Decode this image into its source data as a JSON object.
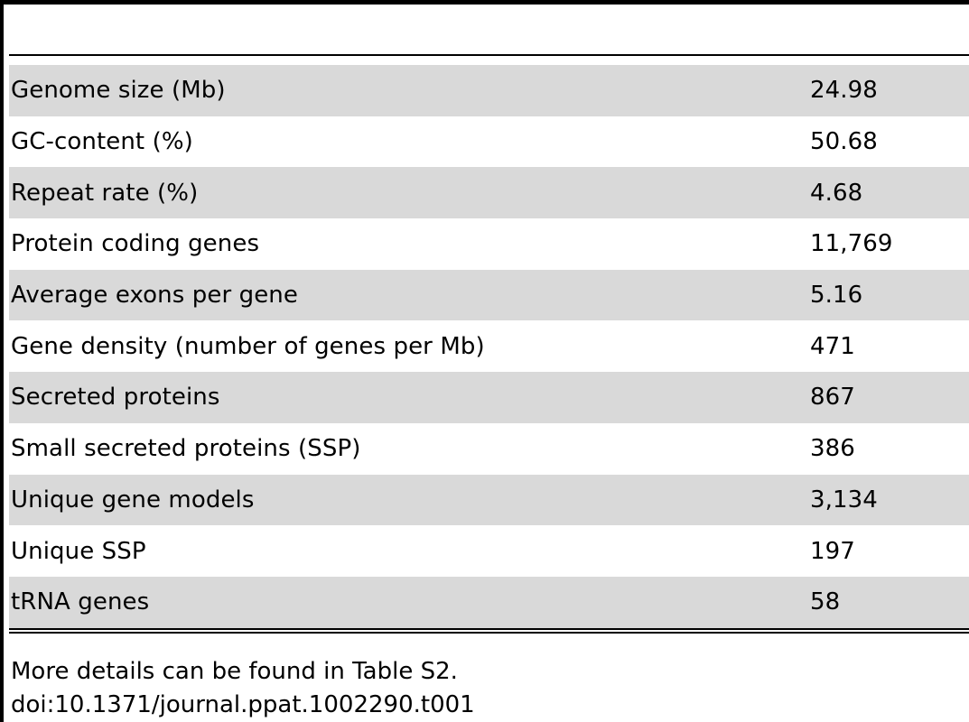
{
  "table": {
    "rows": [
      {
        "label": "Genome size (Mb)",
        "value": "24.98"
      },
      {
        "label": "GC-content (%)",
        "value": "50.68"
      },
      {
        "label": "Repeat rate (%)",
        "value": "4.68"
      },
      {
        "label": "Protein coding genes",
        "value": "11,769"
      },
      {
        "label": "Average exons per gene",
        "value": "5.16"
      },
      {
        "label": "Gene density (number of genes per Mb)",
        "value": "471"
      },
      {
        "label": "Secreted proteins",
        "value": "867"
      },
      {
        "label": "Small secreted proteins (SSP)",
        "value": "386"
      },
      {
        "label": "Unique gene models",
        "value": "3,134"
      },
      {
        "label": "Unique SSP",
        "value": "197"
      },
      {
        "label": "tRNA genes",
        "value": "58"
      }
    ]
  },
  "footnotes": {
    "note": "More details can be found in Table S2.",
    "doi": "doi:10.1371/journal.ppat.1002290.t001"
  },
  "colors": {
    "row_shade": "#d9d9d9",
    "rule": "#000000"
  }
}
